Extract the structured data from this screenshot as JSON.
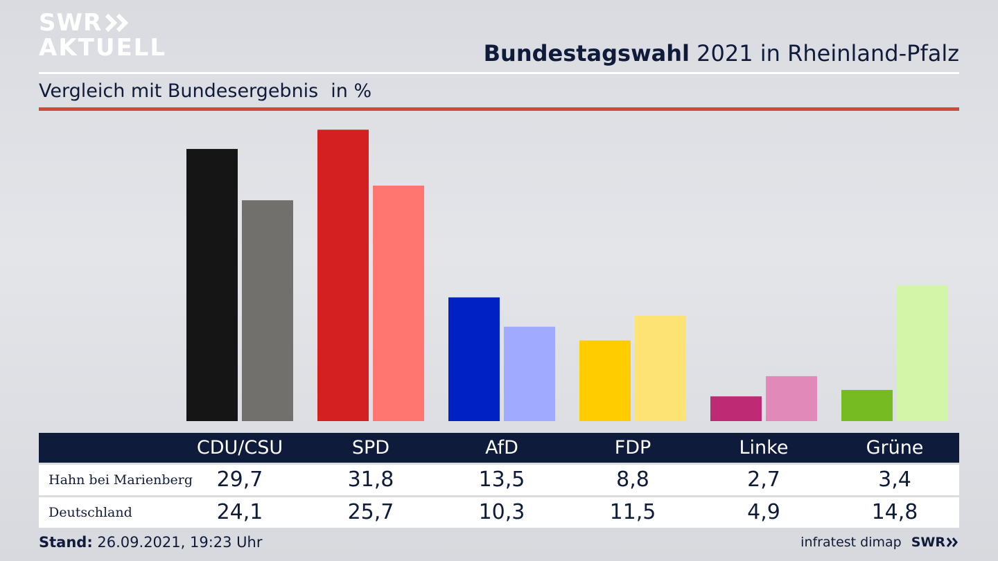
{
  "logo": {
    "line1": "SWR",
    "line2": "AKTUELL"
  },
  "header": {
    "title_bold": "Bundestagswahl",
    "title_rest": " 2021 in Rheinland-Pfalz"
  },
  "subtitle": {
    "text": "Vergleich mit Bundesergebnis",
    "unit": "in %"
  },
  "colors": {
    "navy": "#0f1b3a",
    "red_rule": "#cf4a3c"
  },
  "chart_data": {
    "type": "bar",
    "title": "Vergleich mit Bundesergebnis",
    "ylabel": "in %",
    "ylim": [
      0,
      33
    ],
    "categories": [
      "CDU/CSU",
      "SPD",
      "AfD",
      "FDP",
      "Linke",
      "Grüne"
    ],
    "series": [
      {
        "name": "Hahn bei Marienberg",
        "values": [
          29.7,
          31.8,
          13.5,
          8.8,
          2.7,
          3.4
        ],
        "labels": [
          "29,7",
          "31,8",
          "13,5",
          "8,8",
          "2,7",
          "3,4"
        ],
        "colors": [
          "#151515",
          "#d42020",
          "#0021c4",
          "#ffcc00",
          "#be2a73",
          "#77bb22"
        ]
      },
      {
        "name": "Deutschland",
        "values": [
          24.1,
          25.7,
          10.3,
          11.5,
          4.9,
          14.8
        ],
        "labels": [
          "24,1",
          "25,7",
          "10,3",
          "11,5",
          "4,9",
          "14,8"
        ],
        "colors": [
          "#72706d",
          "#ff7670",
          "#a0aaff",
          "#fde274",
          "#e189b9",
          "#d2f5a8"
        ]
      }
    ]
  },
  "footer": {
    "stand_label": "Stand:",
    "stand_value": " 26.09.2021, 19:23 Uhr",
    "source": "infratest dimap",
    "brand": "SWR"
  }
}
